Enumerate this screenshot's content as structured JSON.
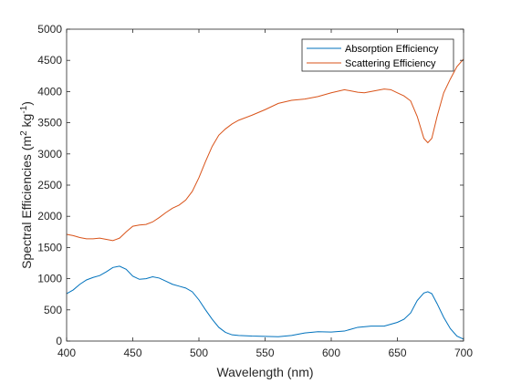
{
  "chart_data": {
    "type": "line",
    "xlabel": "Wavelength (nm)",
    "ylabel": {
      "base": "Spectral Efficiencies (m",
      "sup1": "2",
      "mid": " kg",
      "sup2": "-1",
      "end": ")"
    },
    "xlim": [
      400,
      700
    ],
    "ylim": [
      0,
      5000
    ],
    "xticks": [
      400,
      450,
      500,
      550,
      600,
      650,
      700
    ],
    "yticks": [
      0,
      500,
      1000,
      1500,
      2000,
      2500,
      3000,
      3500,
      4000,
      4500,
      5000
    ],
    "grid": false,
    "legend_position": "top-right",
    "series": [
      {
        "name": "Absorption Efficiency",
        "color": "#0072BD",
        "x": [
          400,
          405,
          410,
          415,
          420,
          425,
          430,
          435,
          440,
          445,
          450,
          455,
          460,
          465,
          470,
          475,
          480,
          485,
          490,
          495,
          500,
          505,
          510,
          515,
          520,
          525,
          530,
          540,
          550,
          560,
          570,
          580,
          590,
          600,
          610,
          620,
          630,
          640,
          650,
          655,
          660,
          665,
          670,
          673,
          676,
          680,
          685,
          690,
          695,
          700
        ],
        "y": [
          760,
          820,
          910,
          980,
          1020,
          1050,
          1110,
          1180,
          1200,
          1150,
          1040,
          990,
          1000,
          1030,
          1010,
          960,
          910,
          880,
          850,
          790,
          660,
          500,
          350,
          220,
          140,
          100,
          90,
          80,
          75,
          70,
          90,
          130,
          150,
          145,
          160,
          220,
          240,
          240,
          300,
          350,
          450,
          650,
          770,
          790,
          760,
          600,
          380,
          200,
          80,
          30
        ]
      },
      {
        "name": "Scattering Efficiency",
        "color": "#D95319",
        "x": [
          400,
          405,
          410,
          415,
          420,
          425,
          430,
          435,
          440,
          445,
          450,
          455,
          460,
          465,
          470,
          475,
          480,
          485,
          490,
          495,
          500,
          505,
          510,
          515,
          520,
          525,
          530,
          540,
          550,
          560,
          570,
          580,
          590,
          600,
          610,
          620,
          625,
          630,
          640,
          645,
          650,
          655,
          660,
          665,
          670,
          673,
          676,
          680,
          685,
          690,
          695,
          700
        ],
        "y": [
          1710,
          1690,
          1660,
          1640,
          1640,
          1650,
          1630,
          1610,
          1650,
          1750,
          1840,
          1860,
          1870,
          1910,
          1980,
          2060,
          2130,
          2180,
          2260,
          2400,
          2620,
          2880,
          3120,
          3300,
          3400,
          3480,
          3540,
          3620,
          3710,
          3810,
          3860,
          3880,
          3920,
          3980,
          4030,
          3990,
          3980,
          4000,
          4040,
          4030,
          3980,
          3930,
          3850,
          3600,
          3250,
          3180,
          3250,
          3600,
          3980,
          4200,
          4400,
          4520
        ]
      }
    ]
  }
}
